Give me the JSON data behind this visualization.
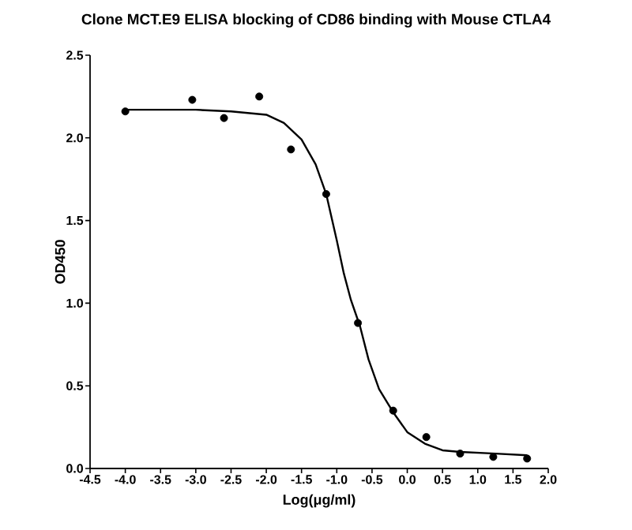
{
  "chart_data": {
    "type": "scatter",
    "title": "Clone MCT.E9 ELISA blocking of CD86 binding with Mouse CTLA4",
    "xlabel": "Log(μg/ml)",
    "ylabel": "OD450",
    "xlim": [
      -4.5,
      2.0
    ],
    "ylim": [
      0,
      2.5
    ],
    "xticks": [
      {
        "value": -4.5,
        "label": "-4.5"
      },
      {
        "value": -4.0,
        "label": "-4.0"
      },
      {
        "value": -3.5,
        "label": "-3.5"
      },
      {
        "value": -3.0,
        "label": "-3.0"
      },
      {
        "value": -2.5,
        "label": "-2.5"
      },
      {
        "value": -2.0,
        "label": "-2.0"
      },
      {
        "value": -1.5,
        "label": "-1.5"
      },
      {
        "value": -1.0,
        "label": "-1.0"
      },
      {
        "value": -0.5,
        "label": "-0.5"
      },
      {
        "value": 0.0,
        "label": "0.0"
      },
      {
        "value": 0.5,
        "label": "0.5"
      },
      {
        "value": 1.0,
        "label": "1.0"
      },
      {
        "value": 1.5,
        "label": "1.5"
      },
      {
        "value": 2.0,
        "label": "2.0"
      }
    ],
    "yticks": [
      {
        "value": 0.0,
        "label": "0.0"
      },
      {
        "value": 0.5,
        "label": "0.5"
      },
      {
        "value": 1.0,
        "label": "1.0"
      },
      {
        "value": 1.5,
        "label": "1.5"
      },
      {
        "value": 2.0,
        "label": "2.0"
      },
      {
        "value": 2.5,
        "label": "2.5"
      }
    ],
    "series": [
      {
        "type": "line",
        "marker": "none",
        "color": "#000000",
        "x": [
          -4.0,
          -3.0,
          -2.5,
          -2.0,
          -1.75,
          -1.5,
          -1.3,
          -1.15,
          -1.0,
          -0.9,
          -0.8,
          -0.67,
          -0.55,
          -0.4,
          -0.2,
          0.0,
          0.25,
          0.5,
          0.75,
          1.25,
          1.7
        ],
        "values": [
          2.17,
          2.17,
          2.16,
          2.14,
          2.09,
          1.99,
          1.84,
          1.66,
          1.38,
          1.18,
          1.02,
          0.86,
          0.66,
          0.48,
          0.34,
          0.22,
          0.15,
          0.11,
          0.1,
          0.09,
          0.08
        ]
      },
      {
        "marker": "circle",
        "color": "#000000",
        "x": [
          -4.0,
          -3.05,
          -2.6,
          -2.1,
          -1.65,
          -1.15,
          -0.7,
          -0.2,
          0.27,
          0.75,
          1.22,
          1.7
        ],
        "values": [
          2.16,
          2.23,
          2.12,
          2.25,
          1.93,
          1.66,
          0.88,
          0.35,
          0.19,
          0.09,
          0.07,
          0.06
        ]
      }
    ]
  }
}
